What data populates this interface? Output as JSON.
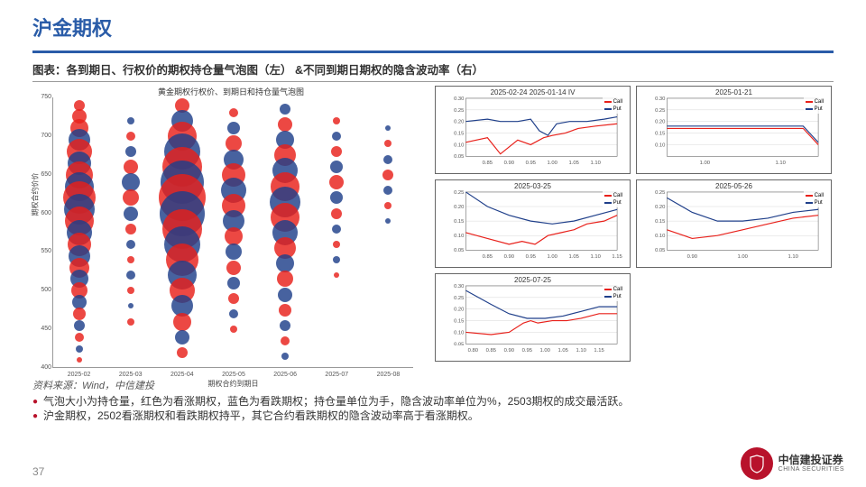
{
  "header": {
    "title": "沪金期权"
  },
  "subtitle": "图表：各到期日、行权价的期权持仓量气泡图（左）  &不同到期日期权的隐含波动率（右）",
  "source": "资料来源：Wind，中信建投",
  "bullets": [
    "气泡大小为持仓量，红色为看涨期权，蓝色为看跌期权；持仓量单位为手，隐含波动率单位为%，2503期权的成交最活跃。",
    "沪金期权，2502看涨期权和看跌期权持平，其它合约看跌期权的隐含波动率高于看涨期权。"
  ],
  "page_number": "37",
  "logo": {
    "cn": "中信建投证券",
    "en": "CHINA SECURITIES"
  },
  "colors": {
    "call": "#e8201a",
    "put": "#1f3f8a",
    "accent": "#2a5ca8",
    "brand_red": "#b8122b",
    "grid": "#cccccc"
  },
  "bubble_chart": {
    "title": "黄金期权行权价、到期日和持仓量气泡图",
    "y_axis_title": "期权合约价价",
    "x_axis_title": "期权合约到期日",
    "y_range": [
      400,
      750
    ],
    "y_ticks": [
      400,
      450,
      500,
      550,
      600,
      650,
      700,
      750
    ],
    "x_categories": [
      "2025-02",
      "2025-03",
      "2025-04",
      "2025-05",
      "2025-06",
      "2025-07",
      "2025-08"
    ],
    "columns": [
      {
        "x": 0,
        "bubbles": [
          {
            "y": 740,
            "r": 6,
            "c": "call"
          },
          {
            "y": 725,
            "r": 8,
            "c": "call"
          },
          {
            "y": 710,
            "r": 10,
            "c": "call"
          },
          {
            "y": 695,
            "r": 12,
            "c": "put"
          },
          {
            "y": 680,
            "r": 14,
            "c": "call"
          },
          {
            "y": 665,
            "r": 13,
            "c": "put"
          },
          {
            "y": 650,
            "r": 15,
            "c": "call"
          },
          {
            "y": 635,
            "r": 16,
            "c": "put"
          },
          {
            "y": 620,
            "r": 18,
            "c": "call"
          },
          {
            "y": 605,
            "r": 17,
            "c": "put"
          },
          {
            "y": 590,
            "r": 16,
            "c": "call"
          },
          {
            "y": 575,
            "r": 14,
            "c": "put"
          },
          {
            "y": 560,
            "r": 13,
            "c": "call"
          },
          {
            "y": 545,
            "r": 12,
            "c": "put"
          },
          {
            "y": 530,
            "r": 11,
            "c": "call"
          },
          {
            "y": 515,
            "r": 10,
            "c": "put"
          },
          {
            "y": 500,
            "r": 9,
            "c": "call"
          },
          {
            "y": 485,
            "r": 8,
            "c": "put"
          },
          {
            "y": 470,
            "r": 7,
            "c": "call"
          },
          {
            "y": 455,
            "r": 6,
            "c": "put"
          },
          {
            "y": 440,
            "r": 5,
            "c": "call"
          },
          {
            "y": 425,
            "r": 4,
            "c": "put"
          },
          {
            "y": 410,
            "r": 3,
            "c": "call"
          }
        ]
      },
      {
        "x": 1,
        "bubbles": [
          {
            "y": 720,
            "r": 4,
            "c": "put"
          },
          {
            "y": 700,
            "r": 5,
            "c": "call"
          },
          {
            "y": 680,
            "r": 6,
            "c": "put"
          },
          {
            "y": 660,
            "r": 8,
            "c": "call"
          },
          {
            "y": 640,
            "r": 10,
            "c": "put"
          },
          {
            "y": 620,
            "r": 9,
            "c": "call"
          },
          {
            "y": 600,
            "r": 8,
            "c": "put"
          },
          {
            "y": 580,
            "r": 6,
            "c": "call"
          },
          {
            "y": 560,
            "r": 5,
            "c": "put"
          },
          {
            "y": 540,
            "r": 4,
            "c": "call"
          },
          {
            "y": 520,
            "r": 5,
            "c": "put"
          },
          {
            "y": 500,
            "r": 4,
            "c": "call"
          },
          {
            "y": 480,
            "r": 3,
            "c": "put"
          },
          {
            "y": 460,
            "r": 4,
            "c": "call"
          }
        ]
      },
      {
        "x": 2,
        "bubbles": [
          {
            "y": 740,
            "r": 8,
            "c": "call"
          },
          {
            "y": 720,
            "r": 12,
            "c": "put"
          },
          {
            "y": 700,
            "r": 16,
            "c": "call"
          },
          {
            "y": 680,
            "r": 20,
            "c": "put"
          },
          {
            "y": 660,
            "r": 22,
            "c": "call"
          },
          {
            "y": 640,
            "r": 24,
            "c": "put"
          },
          {
            "y": 620,
            "r": 26,
            "c": "call"
          },
          {
            "y": 600,
            "r": 25,
            "c": "put"
          },
          {
            "y": 580,
            "r": 22,
            "c": "call"
          },
          {
            "y": 560,
            "r": 20,
            "c": "put"
          },
          {
            "y": 540,
            "r": 18,
            "c": "call"
          },
          {
            "y": 520,
            "r": 16,
            "c": "put"
          },
          {
            "y": 500,
            "r": 14,
            "c": "call"
          },
          {
            "y": 480,
            "r": 12,
            "c": "put"
          },
          {
            "y": 460,
            "r": 10,
            "c": "call"
          },
          {
            "y": 440,
            "r": 8,
            "c": "put"
          },
          {
            "y": 420,
            "r": 6,
            "c": "call"
          }
        ]
      },
      {
        "x": 3,
        "bubbles": [
          {
            "y": 730,
            "r": 5,
            "c": "call"
          },
          {
            "y": 710,
            "r": 7,
            "c": "put"
          },
          {
            "y": 690,
            "r": 9,
            "c": "call"
          },
          {
            "y": 670,
            "r": 11,
            "c": "put"
          },
          {
            "y": 650,
            "r": 13,
            "c": "call"
          },
          {
            "y": 630,
            "r": 14,
            "c": "put"
          },
          {
            "y": 610,
            "r": 13,
            "c": "call"
          },
          {
            "y": 590,
            "r": 12,
            "c": "put"
          },
          {
            "y": 570,
            "r": 10,
            "c": "call"
          },
          {
            "y": 550,
            "r": 9,
            "c": "put"
          },
          {
            "y": 530,
            "r": 8,
            "c": "call"
          },
          {
            "y": 510,
            "r": 7,
            "c": "put"
          },
          {
            "y": 490,
            "r": 6,
            "c": "call"
          },
          {
            "y": 470,
            "r": 5,
            "c": "put"
          },
          {
            "y": 450,
            "r": 4,
            "c": "call"
          }
        ]
      },
      {
        "x": 4,
        "bubbles": [
          {
            "y": 735,
            "r": 6,
            "c": "put"
          },
          {
            "y": 715,
            "r": 8,
            "c": "call"
          },
          {
            "y": 695,
            "r": 10,
            "c": "put"
          },
          {
            "y": 675,
            "r": 12,
            "c": "call"
          },
          {
            "y": 655,
            "r": 14,
            "c": "put"
          },
          {
            "y": 635,
            "r": 16,
            "c": "call"
          },
          {
            "y": 615,
            "r": 17,
            "c": "put"
          },
          {
            "y": 595,
            "r": 16,
            "c": "call"
          },
          {
            "y": 575,
            "r": 14,
            "c": "put"
          },
          {
            "y": 555,
            "r": 12,
            "c": "call"
          },
          {
            "y": 535,
            "r": 10,
            "c": "put"
          },
          {
            "y": 515,
            "r": 9,
            "c": "call"
          },
          {
            "y": 495,
            "r": 8,
            "c": "put"
          },
          {
            "y": 475,
            "r": 7,
            "c": "call"
          },
          {
            "y": 455,
            "r": 6,
            "c": "put"
          },
          {
            "y": 435,
            "r": 5,
            "c": "call"
          },
          {
            "y": 415,
            "r": 4,
            "c": "put"
          }
        ]
      },
      {
        "x": 5,
        "bubbles": [
          {
            "y": 720,
            "r": 4,
            "c": "call"
          },
          {
            "y": 700,
            "r": 5,
            "c": "put"
          },
          {
            "y": 680,
            "r": 6,
            "c": "call"
          },
          {
            "y": 660,
            "r": 7,
            "c": "put"
          },
          {
            "y": 640,
            "r": 8,
            "c": "call"
          },
          {
            "y": 620,
            "r": 7,
            "c": "put"
          },
          {
            "y": 600,
            "r": 6,
            "c": "call"
          },
          {
            "y": 580,
            "r": 5,
            "c": "put"
          },
          {
            "y": 560,
            "r": 4,
            "c": "call"
          },
          {
            "y": 540,
            "r": 4,
            "c": "put"
          },
          {
            "y": 520,
            "r": 3,
            "c": "call"
          }
        ]
      },
      {
        "x": 6,
        "bubbles": [
          {
            "y": 710,
            "r": 3,
            "c": "put"
          },
          {
            "y": 690,
            "r": 4,
            "c": "call"
          },
          {
            "y": 670,
            "r": 5,
            "c": "put"
          },
          {
            "y": 650,
            "r": 6,
            "c": "call"
          },
          {
            "y": 630,
            "r": 5,
            "c": "put"
          },
          {
            "y": 610,
            "r": 4,
            "c": "call"
          },
          {
            "y": 590,
            "r": 3,
            "c": "put"
          }
        ]
      }
    ]
  },
  "iv_panels": [
    {
      "title": "2025-02-24",
      "extra": "2025-01-14  IV",
      "y_range": [
        0.05,
        0.3
      ],
      "y_ticks": [
        0.05,
        0.1,
        0.15,
        0.2,
        0.25,
        0.3
      ],
      "x_range": [
        0.8,
        1.15
      ],
      "x_ticks": [
        0.85,
        0.9,
        0.95,
        1.0,
        1.05,
        1.1
      ],
      "call": [
        [
          0.8,
          0.11
        ],
        [
          0.85,
          0.13
        ],
        [
          0.88,
          0.06
        ],
        [
          0.92,
          0.12
        ],
        [
          0.95,
          0.1
        ],
        [
          0.98,
          0.13
        ],
        [
          1.0,
          0.14
        ],
        [
          1.03,
          0.15
        ],
        [
          1.06,
          0.17
        ],
        [
          1.1,
          0.18
        ],
        [
          1.15,
          0.19
        ]
      ],
      "put": [
        [
          0.8,
          0.2
        ],
        [
          0.85,
          0.21
        ],
        [
          0.88,
          0.2
        ],
        [
          0.92,
          0.2
        ],
        [
          0.95,
          0.21
        ],
        [
          0.97,
          0.16
        ],
        [
          0.99,
          0.14
        ],
        [
          1.01,
          0.19
        ],
        [
          1.04,
          0.2
        ],
        [
          1.08,
          0.2
        ],
        [
          1.12,
          0.21
        ],
        [
          1.15,
          0.22
        ]
      ]
    },
    {
      "title": "2025-01-21",
      "y_range": [
        0.05,
        0.3
      ],
      "y_ticks": [
        0.1,
        0.15,
        0.2,
        0.25,
        0.3
      ],
      "x_range": [
        0.95,
        1.15
      ],
      "x_ticks": [
        1.0,
        1.1
      ],
      "call": [
        [
          0.95,
          0.17
        ],
        [
          1.0,
          0.17
        ],
        [
          1.05,
          0.17
        ],
        [
          1.1,
          0.17
        ],
        [
          1.13,
          0.17
        ],
        [
          1.15,
          0.1
        ]
      ],
      "put": [
        [
          0.95,
          0.18
        ],
        [
          1.0,
          0.18
        ],
        [
          1.05,
          0.18
        ],
        [
          1.1,
          0.18
        ],
        [
          1.13,
          0.18
        ],
        [
          1.15,
          0.11
        ]
      ]
    },
    {
      "title": "2025-03-25",
      "y_range": [
        0.05,
        0.25
      ],
      "y_ticks": [
        0.05,
        0.1,
        0.15,
        0.2,
        0.25
      ],
      "x_range": [
        0.8,
        1.15
      ],
      "x_ticks": [
        0.85,
        0.9,
        0.95,
        1.0,
        1.05,
        1.1,
        1.15
      ],
      "call": [
        [
          0.8,
          0.11
        ],
        [
          0.85,
          0.09
        ],
        [
          0.9,
          0.07
        ],
        [
          0.93,
          0.08
        ],
        [
          0.96,
          0.07
        ],
        [
          0.99,
          0.1
        ],
        [
          1.02,
          0.11
        ],
        [
          1.05,
          0.12
        ],
        [
          1.08,
          0.14
        ],
        [
          1.12,
          0.15
        ],
        [
          1.15,
          0.17
        ]
      ],
      "put": [
        [
          0.8,
          0.25
        ],
        [
          0.85,
          0.2
        ],
        [
          0.9,
          0.17
        ],
        [
          0.95,
          0.15
        ],
        [
          1.0,
          0.14
        ],
        [
          1.05,
          0.15
        ],
        [
          1.1,
          0.17
        ],
        [
          1.15,
          0.19
        ]
      ]
    },
    {
      "title": "2025-05-26",
      "y_range": [
        0.05,
        0.25
      ],
      "y_ticks": [
        0.05,
        0.1,
        0.15,
        0.2,
        0.25
      ],
      "x_range": [
        0.85,
        1.15
      ],
      "x_ticks": [
        0.9,
        1.0,
        1.1
      ],
      "call": [
        [
          0.85,
          0.12
        ],
        [
          0.9,
          0.09
        ],
        [
          0.95,
          0.1
        ],
        [
          1.0,
          0.12
        ],
        [
          1.05,
          0.14
        ],
        [
          1.1,
          0.16
        ],
        [
          1.15,
          0.17
        ]
      ],
      "put": [
        [
          0.85,
          0.23
        ],
        [
          0.9,
          0.18
        ],
        [
          0.95,
          0.15
        ],
        [
          1.0,
          0.15
        ],
        [
          1.05,
          0.16
        ],
        [
          1.1,
          0.18
        ],
        [
          1.15,
          0.19
        ]
      ]
    },
    {
      "title": "2025-07-25",
      "y_range": [
        0.05,
        0.3
      ],
      "y_ticks": [
        0.05,
        0.1,
        0.15,
        0.2,
        0.25,
        0.3
      ],
      "x_range": [
        0.78,
        1.2
      ],
      "x_ticks": [
        0.8,
        0.85,
        0.9,
        0.95,
        1.0,
        1.05,
        1.1,
        1.15
      ],
      "call": [
        [
          0.78,
          0.1
        ],
        [
          0.85,
          0.09
        ],
        [
          0.9,
          0.1
        ],
        [
          0.94,
          0.14
        ],
        [
          0.96,
          0.15
        ],
        [
          0.98,
          0.14
        ],
        [
          1.02,
          0.15
        ],
        [
          1.06,
          0.15
        ],
        [
          1.1,
          0.16
        ],
        [
          1.15,
          0.18
        ],
        [
          1.2,
          0.18
        ]
      ],
      "put": [
        [
          0.78,
          0.28
        ],
        [
          0.85,
          0.22
        ],
        [
          0.9,
          0.18
        ],
        [
          0.95,
          0.16
        ],
        [
          1.0,
          0.16
        ],
        [
          1.05,
          0.17
        ],
        [
          1.1,
          0.19
        ],
        [
          1.15,
          0.21
        ],
        [
          1.2,
          0.21
        ]
      ]
    }
  ],
  "legend_labels": {
    "call": "Call",
    "put": "Put"
  }
}
